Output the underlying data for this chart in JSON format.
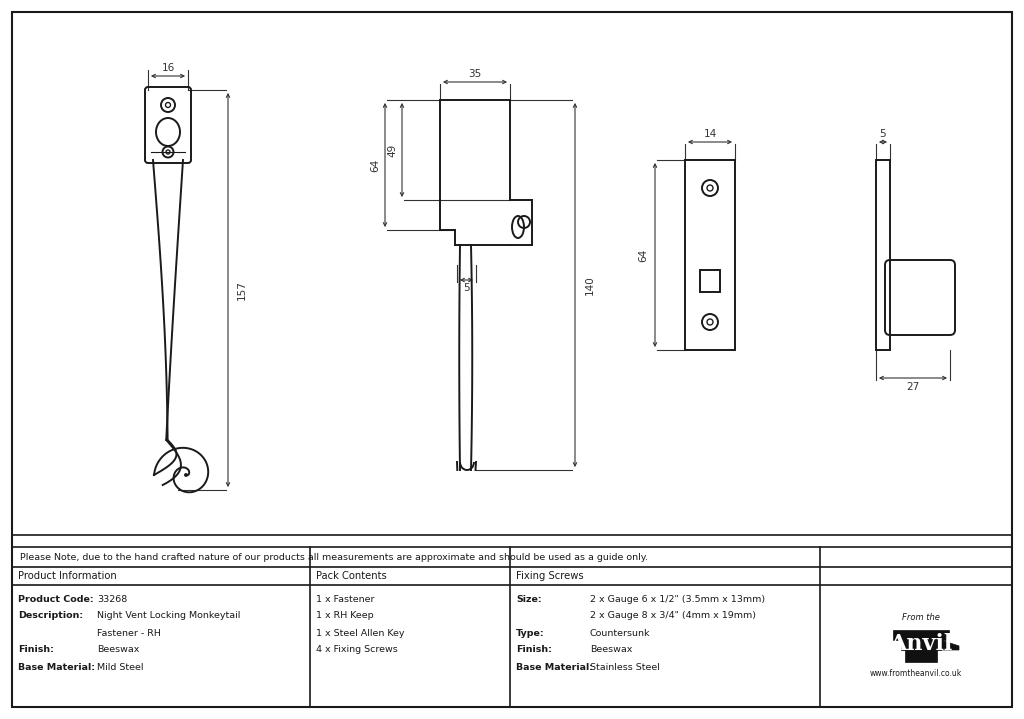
{
  "background_color": "#ffffff",
  "line_color": "#1a1a1a",
  "dim_color": "#333333",
  "note_text": "Please Note, due to the hand crafted nature of our products all measurements are approximate and should be used as a guide only.",
  "table": {
    "col1_header": "Product Information",
    "col2_header": "Pack Contents",
    "col3_header": "Fixing Screws",
    "col1_rows": [
      [
        "Product Code:",
        "33268"
      ],
      [
        "Description:",
        "Night Vent Locking Monkeytail"
      ],
      [
        "",
        "Fastener - RH"
      ],
      [
        "Finish:",
        "Beeswax"
      ],
      [
        "Base Material:",
        "Mild Steel"
      ]
    ],
    "col2_rows": [
      "1 x Fastener",
      "1 x RH Keep",
      "1 x Steel Allen Key",
      "4 x Fixing Screws"
    ],
    "col3_rows": [
      [
        "Size:",
        "2 x Gauge 6 x 1/2\" (3.5mm x 13mm)"
      ],
      [
        "",
        "2 x Gauge 8 x 3/4\" (4mm x 19mm)"
      ],
      [
        "Type:",
        "Countersunk"
      ],
      [
        "Finish:",
        "Beeswax"
      ],
      [
        "Base Material:",
        "Stainless Steel"
      ]
    ]
  }
}
